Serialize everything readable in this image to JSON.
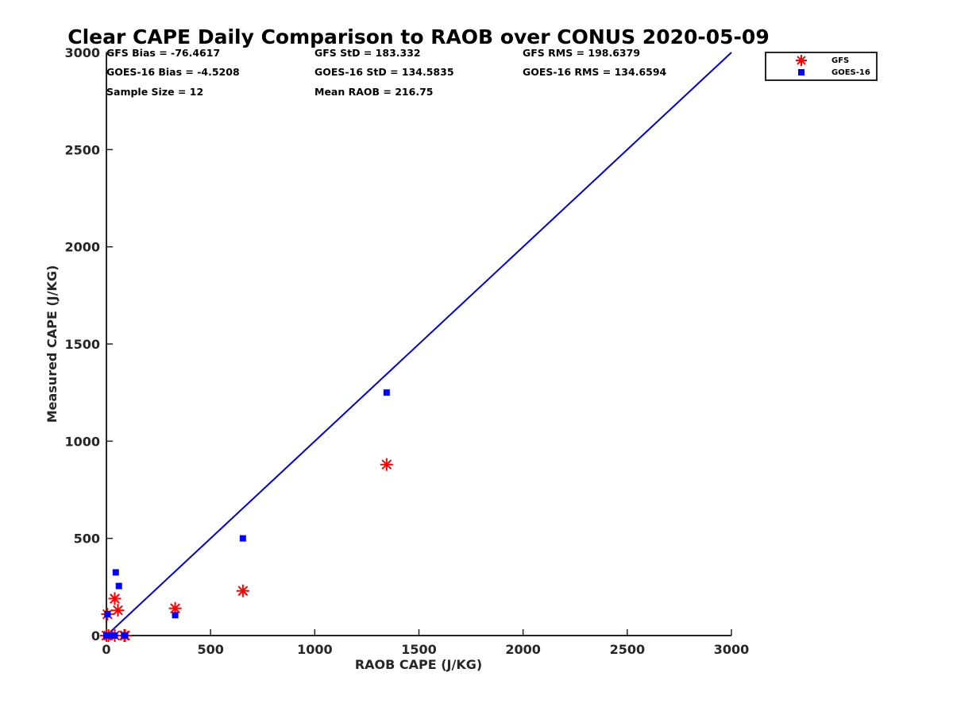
{
  "chart_data": {
    "type": "scatter",
    "title": "Clear CAPE Daily Comparison to RAOB over CONUS 2020-05-09",
    "xlabel": "RAOB CAPE (J/KG)",
    "ylabel": "Measured CAPE (J/KG)",
    "xlim": [
      0,
      3000
    ],
    "ylim": [
      0,
      3000
    ],
    "xticks": [
      "0",
      "500",
      "1000",
      "1500",
      "2000",
      "2500",
      "3000"
    ],
    "yticks": [
      "0",
      "500",
      "1000",
      "1500",
      "2000",
      "2500",
      "3000"
    ],
    "grid": false,
    "legend_position": "top-right, outside plot",
    "reference_line": {
      "x": [
        0,
        3000
      ],
      "y": [
        0,
        3000
      ],
      "color": "#0000dd"
    },
    "stats": [
      [
        "GFS Bias = -76.4617",
        "GFS StD = 183.332",
        "GFS RMS = 198.6379"
      ],
      [
        "GOES-16 Bias = -4.5208",
        "GOES-16 StD = 134.5835",
        "GOES-16 RMS = 134.6594"
      ],
      [
        "Sample Size = 12",
        "Mean RAOB = 216.75",
        ""
      ]
    ],
    "series": [
      {
        "name": "GFS",
        "marker": "asterisk",
        "color": "#ff0000",
        "points": [
          [
            0,
            0
          ],
          [
            5,
            110
          ],
          [
            10,
            0
          ],
          [
            40,
            0
          ],
          [
            40,
            190
          ],
          [
            55,
            130
          ],
          [
            85,
            0
          ],
          [
            90,
            0
          ],
          [
            330,
            140
          ],
          [
            655,
            230
          ],
          [
            1345,
            880
          ]
        ]
      },
      {
        "name": "GOES-16",
        "marker": "square",
        "color": "#0000ff",
        "points": [
          [
            0,
            0
          ],
          [
            5,
            110
          ],
          [
            10,
            0
          ],
          [
            40,
            0
          ],
          [
            45,
            325
          ],
          [
            60,
            255
          ],
          [
            85,
            0
          ],
          [
            90,
            0
          ],
          [
            330,
            105
          ],
          [
            655,
            500
          ],
          [
            1345,
            1250
          ]
        ]
      }
    ]
  }
}
